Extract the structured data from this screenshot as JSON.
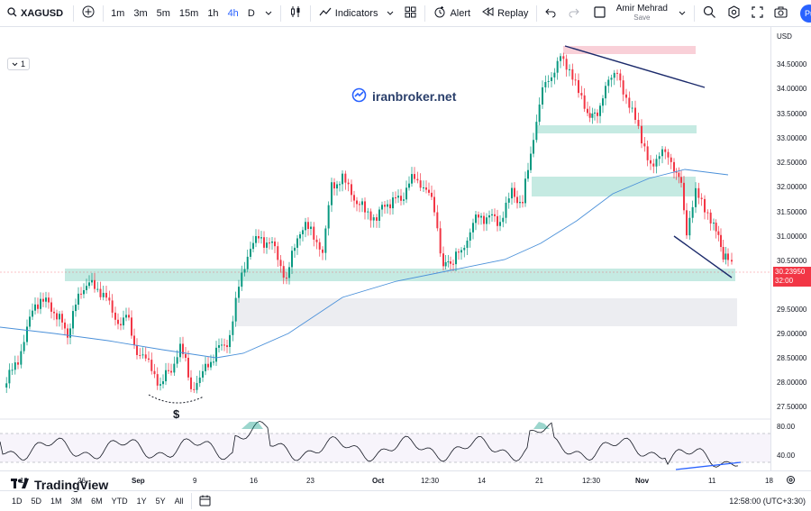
{
  "toolbar": {
    "symbol": "XAGUSD",
    "timeframes": [
      "1m",
      "3m",
      "5m",
      "15m",
      "1h",
      "4h",
      "D"
    ],
    "active_timeframe": "4h",
    "indicators_label": "Indicators",
    "alert_label": "Alert",
    "replay_label": "Replay",
    "user_name": "Amir Mehrad",
    "save_label": "Save",
    "publish_label": "Pu"
  },
  "chart": {
    "legend_count": "1",
    "watermark": "iranbroker.net",
    "logo_text": "TradingView",
    "dollar_mark": "$",
    "currency": "USD",
    "last_price": "30.23950",
    "countdown": "32:00",
    "price_ticks": [
      "34.50000",
      "34.00000",
      "33.50000",
      "33.00000",
      "32.50000",
      "32.00000",
      "31.50000",
      "31.00000",
      "30.50000",
      "29.50000",
      "29.00000",
      "28.50000",
      "28.00000",
      "27.50000"
    ],
    "rsi_ticks": [
      "80.00",
      "40.00"
    ],
    "accent_up": "#089981",
    "accent_down": "#f23645"
  },
  "time_axis": {
    "labels": [
      "19",
      "26",
      "Sep",
      "9",
      "16",
      "23",
      "Oct",
      "12:30",
      "14",
      "21",
      "12:30",
      "Nov",
      "11",
      "18"
    ]
  },
  "bottombar": {
    "ranges": [
      "1D",
      "5D",
      "1M",
      "3M",
      "6M",
      "YTD",
      "1Y",
      "5Y",
      "All"
    ],
    "clock": "12:58:00 (UTC+3:30)"
  }
}
